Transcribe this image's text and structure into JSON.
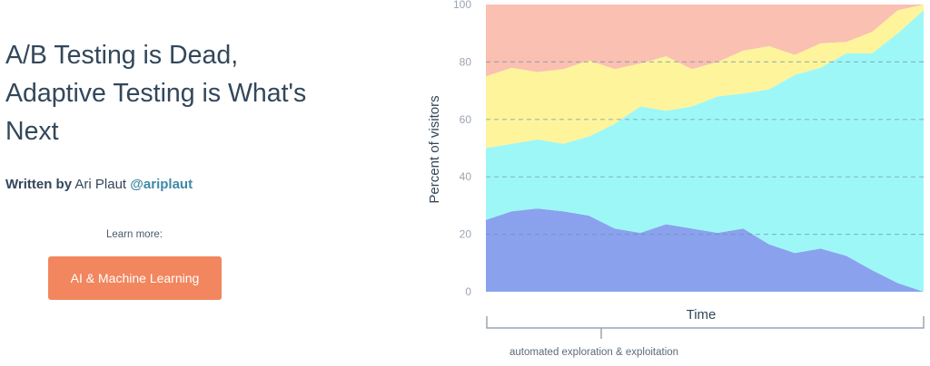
{
  "header": {
    "fragment": ""
  },
  "article": {
    "title_lines": [
      "A/B Testing is Dead,",
      "Adaptive Testing is What's",
      "Next"
    ],
    "byline_lead": "Written by",
    "author": "Ari Plaut",
    "handle": "@ariplaut"
  },
  "cta": {
    "learn_more": "Learn more:",
    "button_label": "AI & Machine Learning"
  },
  "colors": {
    "button": "#f2865e",
    "handle": "#3e8aa6",
    "series": [
      "#8aa2ee",
      "#9ef7f7",
      "#fdf49c",
      "#fac0b1"
    ]
  },
  "chart_data": {
    "type": "area",
    "stacked": true,
    "ylabel": "Percent of visitors",
    "xlabel": "Time",
    "bracket_label": "automated exploration & exploitation",
    "ylim": [
      0,
      100
    ],
    "yticks": [
      0,
      20,
      40,
      60,
      80,
      100
    ],
    "grid": "dashed horizontal",
    "x": [
      0,
      1,
      2,
      3,
      4,
      5,
      6,
      7,
      8,
      9,
      10,
      11,
      12,
      13,
      14,
      15,
      16,
      17
    ],
    "series": [
      {
        "values": [
          25,
          28,
          29,
          28,
          26.5,
          22,
          20.5,
          23.5,
          22,
          20.5,
          22,
          16.5,
          13.5,
          15,
          12.5,
          7.5,
          3,
          0
        ]
      },
      {
        "values": [
          25,
          23.5,
          24,
          23.5,
          27.5,
          36.5,
          44,
          39.5,
          42.5,
          47.5,
          47,
          54,
          62,
          63,
          70.5,
          75.5,
          87,
          98
        ]
      },
      {
        "values": [
          25,
          26.5,
          23.5,
          26,
          26.5,
          19,
          15,
          19,
          13,
          12,
          15,
          15,
          7,
          8.5,
          4,
          7.5,
          8,
          2
        ]
      },
      {
        "values": [
          25,
          22,
          23.5,
          22.5,
          19.5,
          22.5,
          20.5,
          18,
          22.5,
          20,
          16,
          14.5,
          17.5,
          13.5,
          13,
          9.5,
          2,
          0
        ]
      }
    ]
  }
}
